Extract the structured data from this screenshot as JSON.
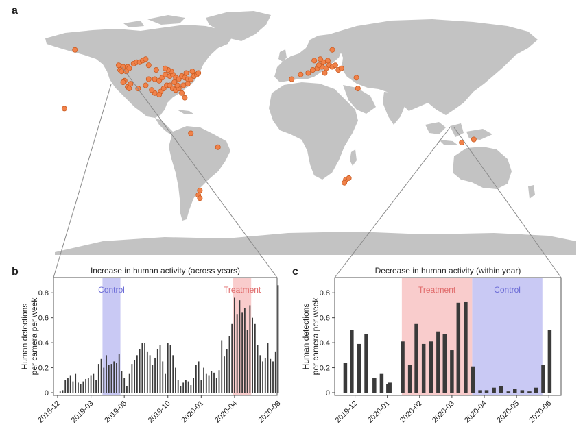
{
  "labels": {
    "a": "a",
    "b": "b",
    "c": "c"
  },
  "colors": {
    "land": "#c3c3c3",
    "site_fill": "#f0824a",
    "site_stroke": "#c95a20",
    "bar": "#3a3a3a",
    "control_band": "#c9c9f4",
    "treatment_band": "#f9cccc",
    "control_text": "#6b6bd6",
    "treatment_text": "#e06a6a",
    "zoom_line": "#8a8a8a"
  },
  "chart_data": [
    {
      "type": "bar",
      "panel": "b",
      "title": "Increase in human activity (across years)",
      "ylabel": [
        "Human detections",
        "per camera per week"
      ],
      "ylim": [
        0,
        0.9
      ],
      "yticks": [
        0,
        0.2,
        0.4,
        0.6,
        0.8
      ],
      "ytick_labels": [
        "0",
        "0.2",
        "0.4",
        "0.6",
        "0.8"
      ],
      "x_range": [
        0,
        84
      ],
      "x_ticks": [
        {
          "label": "2018-12",
          "x": 0
        },
        {
          "label": "2019-03",
          "x": 13
        },
        {
          "label": "2019-06",
          "x": 26
        },
        {
          "label": "2019-10",
          "x": 43
        },
        {
          "label": "2020-01",
          "x": 56
        },
        {
          "label": "2020-04",
          "x": 69
        },
        {
          "label": "2020-08",
          "x": 86
        }
      ],
      "control_band": {
        "label": "Control",
        "start": 17.5,
        "end": 24.5
      },
      "treatment_band": {
        "label": "Treatment",
        "start": 68.5,
        "end": 75.5
      },
      "x": [
        1,
        2,
        3,
        4,
        5,
        6,
        7,
        8,
        9,
        10,
        11,
        12,
        13,
        14,
        15,
        16,
        17,
        18,
        19,
        20,
        21,
        22,
        23,
        24,
        25,
        26,
        27,
        28,
        29,
        30,
        31,
        32,
        33,
        34,
        35,
        36,
        37,
        38,
        39,
        40,
        41,
        42,
        43,
        44,
        45,
        46,
        47,
        48,
        49,
        50,
        51,
        52,
        53,
        54,
        55,
        56,
        57,
        58,
        59,
        60,
        61,
        62,
        63,
        64,
        65,
        66,
        67,
        68,
        69,
        70,
        71,
        72,
        73,
        74,
        75,
        76,
        77,
        78,
        79,
        80,
        81,
        82,
        83,
        84,
        85,
        86
      ],
      "values": [
        0.01,
        0.02,
        0.1,
        0.12,
        0.14,
        0.09,
        0.15,
        0.08,
        0.07,
        0.09,
        0.11,
        0.12,
        0.14,
        0.15,
        0.1,
        0.23,
        0.27,
        0.2,
        0.3,
        0.22,
        0.23,
        0.25,
        0.24,
        0.31,
        0.17,
        0.12,
        0.05,
        0.15,
        0.23,
        0.26,
        0.3,
        0.35,
        0.4,
        0.4,
        0.33,
        0.3,
        0.22,
        0.28,
        0.35,
        0.38,
        0.25,
        0.15,
        0.4,
        0.38,
        0.3,
        0.2,
        0.1,
        0.05,
        0.08,
        0.1,
        0.09,
        0.06,
        0.12,
        0.22,
        0.25,
        0.1,
        0.2,
        0.15,
        0.14,
        0.17,
        0.16,
        0.12,
        0.18,
        0.42,
        0.29,
        0.35,
        0.45,
        0.55,
        0.76,
        0.63,
        0.74,
        0.64,
        0.68,
        0.5,
        0.7,
        0.6,
        0.55,
        0.38,
        0.3,
        0.25,
        0.28,
        0.4,
        0.27,
        0.25,
        0.33,
        0.86
      ]
    },
    {
      "type": "bar",
      "panel": "c",
      "title": "Decrease in human activity (within year)",
      "ylabel": [
        "Human detections",
        "per camera per week"
      ],
      "ylim": [
        0,
        0.9
      ],
      "yticks": [
        0,
        0.2,
        0.4,
        0.6,
        0.8
      ],
      "ytick_labels": [
        "0",
        "0.2",
        "0.4",
        "0.6",
        "0.8"
      ],
      "x_range": [
        0,
        27
      ],
      "x_ticks": [
        {
          "label": "2019-12",
          "x": 2
        },
        {
          "label": "2020-01",
          "x": 6
        },
        {
          "label": "2020-02",
          "x": 10
        },
        {
          "label": "2020-03",
          "x": 14
        },
        {
          "label": "2020-04",
          "x": 18
        },
        {
          "label": "2020-05",
          "x": 22
        },
        {
          "label": "2020-06",
          "x": 26
        }
      ],
      "control_band": {
        "label": "Control",
        "start": 16.5,
        "end": 25.2
      },
      "treatment_band": {
        "label": "Treatment",
        "start": 7.8,
        "end": 16.5
      },
      "x": [
        0.8,
        1.6,
        2.5,
        3.4,
        4.4,
        5.3,
        6.1,
        6.3,
        7.9,
        8.8,
        9.6,
        10.5,
        11.4,
        12.3,
        13.1,
        14.0,
        14.8,
        15.7,
        16.6,
        17.5,
        18.3,
        19.2,
        20.1,
        21.0,
        21.8,
        22.7,
        23.6,
        24.4,
        25.3,
        26.1
      ],
      "values": [
        0.24,
        0.5,
        0.39,
        0.47,
        0.12,
        0.15,
        0.07,
        0.08,
        0.41,
        0.22,
        0.55,
        0.39,
        0.41,
        0.49,
        0.47,
        0.34,
        0.72,
        0.73,
        0.21,
        0.02,
        0.02,
        0.04,
        0.05,
        0.01,
        0.03,
        0.02,
        0.01,
        0.04,
        0.22,
        0.5
      ]
    }
  ],
  "map": {
    "sites": [
      [
        -153,
        58
      ],
      [
        -160,
        20
      ],
      [
        -124,
        48
      ],
      [
        -121,
        47
      ],
      [
        -118,
        47
      ],
      [
        -117,
        46
      ],
      [
        -123,
        45
      ],
      [
        -122,
        44
      ],
      [
        -119,
        44
      ],
      [
        -114,
        49
      ],
      [
        -112,
        50
      ],
      [
        -110,
        50
      ],
      [
        -108,
        51
      ],
      [
        -106,
        52
      ],
      [
        -104,
        48
      ],
      [
        -120,
        38
      ],
      [
        -121,
        37
      ],
      [
        -118,
        34
      ],
      [
        -117,
        33
      ],
      [
        -116,
        36
      ],
      [
        -111,
        33
      ],
      [
        -106,
        35
      ],
      [
        -104,
        39
      ],
      [
        -100,
        39
      ],
      [
        -97,
        38
      ],
      [
        -95,
        40
      ],
      [
        -93,
        42
      ],
      [
        -90,
        41
      ],
      [
        -88,
        42
      ],
      [
        -86,
        40
      ],
      [
        -84,
        39
      ],
      [
        -82,
        41
      ],
      [
        -80,
        40
      ],
      [
        -78,
        39
      ],
      [
        -76,
        39
      ],
      [
        -74,
        41
      ],
      [
        -72,
        42
      ],
      [
        -71,
        43
      ],
      [
        -75,
        44
      ],
      [
        -79,
        43
      ],
      [
        -96,
        31
      ],
      [
        -94,
        33
      ],
      [
        -92,
        35
      ],
      [
        -90,
        35
      ],
      [
        -88,
        33
      ],
      [
        -86,
        32
      ],
      [
        -84,
        33
      ],
      [
        -82,
        30
      ],
      [
        -80,
        27
      ],
      [
        -97,
        29
      ],
      [
        -100,
        30
      ],
      [
        -102,
        32
      ],
      [
        -85,
        35
      ],
      [
        -87,
        37
      ],
      [
        -81,
        35
      ],
      [
        -78,
        36
      ],
      [
        -89,
        44
      ],
      [
        -91,
        45
      ],
      [
        -93,
        46
      ],
      [
        -99,
        45
      ],
      [
        -76,
        4
      ],
      [
        -58,
        -5
      ],
      [
        -70,
        -33
      ],
      [
        -71,
        -36
      ],
      [
        -70,
        -38
      ],
      [
        27,
        -26
      ],
      [
        29,
        -25
      ],
      [
        26,
        -28
      ],
      [
        -9,
        39
      ],
      [
        -3,
        42
      ],
      [
        2,
        43
      ],
      [
        5,
        45
      ],
      [
        8,
        46
      ],
      [
        11,
        47
      ],
      [
        14,
        46
      ],
      [
        16,
        48
      ],
      [
        18,
        47
      ],
      [
        20,
        48
      ],
      [
        22,
        45
      ],
      [
        24,
        46
      ],
      [
        12,
        50
      ],
      [
        15,
        51
      ],
      [
        10,
        52
      ],
      [
        6,
        51
      ],
      [
        9,
        48
      ],
      [
        13,
        43
      ],
      [
        18,
        58
      ],
      [
        34,
        40
      ],
      [
        35,
        33
      ],
      [
        104,
        -2
      ],
      [
        112,
        0
      ]
    ]
  }
}
